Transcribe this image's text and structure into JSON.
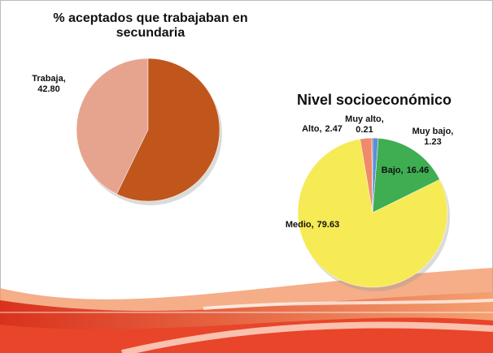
{
  "chart_data": [
    {
      "type": "pie",
      "title": "% aceptados que trabajaban en secundaria",
      "categories": [
        "Trabaja",
        null
      ],
      "values": [
        42.8,
        57.2
      ],
      "value_labels": [
        "42.80",
        null
      ],
      "colors": [
        "#e6a48f",
        "#c0561c"
      ]
    },
    {
      "type": "pie",
      "title": "Nivel socioeconómico",
      "categories": [
        "Muy bajo",
        "Bajo",
        "Medio",
        "Alto",
        "Muy alto"
      ],
      "values": [
        1.23,
        16.46,
        79.63,
        2.47,
        0.21
      ],
      "colors": [
        "#5b8fd9",
        "#3fae52",
        "#f6ea55",
        "#ef8a6a",
        "#d9534f"
      ]
    }
  ]
}
